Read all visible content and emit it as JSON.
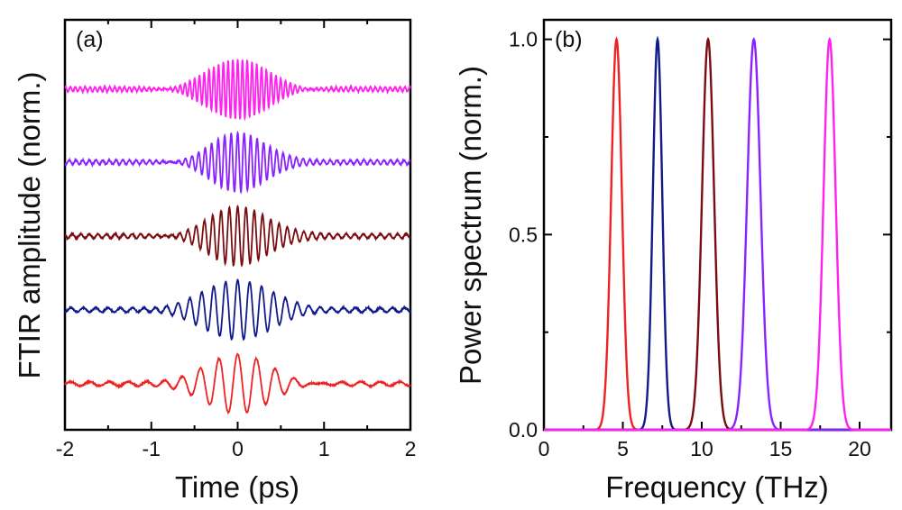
{
  "chart_data": [
    {
      "type": "line",
      "panel_label": "(a)",
      "xlabel": "Time (ps)",
      "ylabel": "FTIR amplitude (norm.)",
      "xlim": [
        -2,
        2
      ],
      "xticks": [
        "-2",
        "-1",
        "0",
        "1",
        "2"
      ],
      "grid": false,
      "series": [
        {
          "color": "#ff22ee",
          "center_frequency_thz": 18.1,
          "envelope_width_ps": 0.5
        },
        {
          "color": "#8a22ff",
          "center_frequency_thz": 13.3,
          "envelope_width_ps": 0.45
        },
        {
          "color": "#7a0d10",
          "center_frequency_thz": 10.4,
          "envelope_width_ps": 0.5
        },
        {
          "color": "#101a8a",
          "center_frequency_thz": 7.2,
          "envelope_width_ps": 0.6
        },
        {
          "color": "#ee2222",
          "center_frequency_thz": 4.6,
          "envelope_width_ps": 0.55
        }
      ]
    },
    {
      "type": "line",
      "panel_label": "(b)",
      "xlabel": "Frequency (THz)",
      "ylabel": "Power spectrum (norm.)",
      "xlim": [
        0,
        22
      ],
      "ylim": [
        0,
        1.05
      ],
      "xticks": [
        "0",
        "5",
        "10",
        "15",
        "20"
      ],
      "yticks": [
        "0.0",
        "0.5",
        "1.0"
      ],
      "grid": false,
      "series": [
        {
          "color": "#ee2222",
          "peak_thz": 4.6,
          "peak_value": 1.0,
          "fwhm_thz": 0.8
        },
        {
          "color": "#101a8a",
          "peak_thz": 7.2,
          "peak_value": 1.0,
          "fwhm_thz": 0.7
        },
        {
          "color": "#7a0d10",
          "peak_thz": 10.4,
          "peak_value": 1.0,
          "fwhm_thz": 0.9
        },
        {
          "color": "#8a22ff",
          "peak_thz": 13.3,
          "peak_value": 1.0,
          "fwhm_thz": 1.0
        },
        {
          "color": "#ff22ee",
          "peak_thz": 18.1,
          "peak_value": 1.0,
          "fwhm_thz": 0.9
        }
      ]
    }
  ]
}
